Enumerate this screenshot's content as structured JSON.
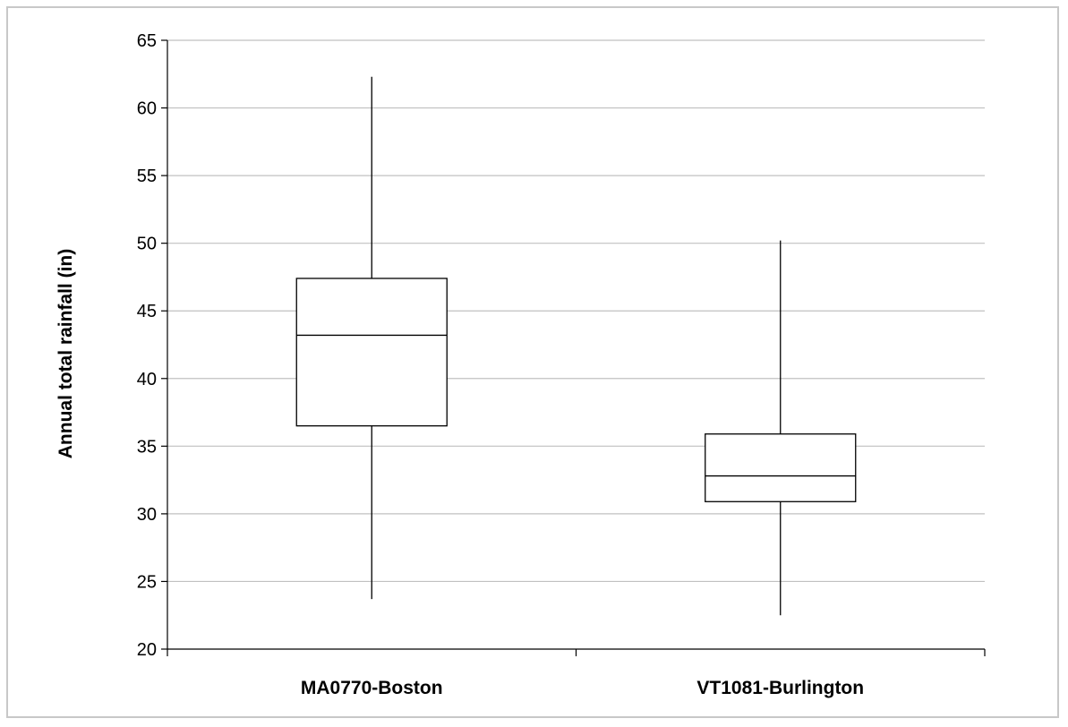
{
  "chart_data": {
    "type": "box",
    "title": "",
    "xlabel": "",
    "ylabel": "Annual total rainfall (in)",
    "ylim": [
      20,
      65
    ],
    "yticks": [
      20,
      25,
      30,
      35,
      40,
      45,
      50,
      55,
      60,
      65
    ],
    "grid": true,
    "legend": "none",
    "categories": [
      "MA0770-Boston",
      "VT1081-Burlington"
    ],
    "boxes": [
      {
        "category": "MA0770-Boston",
        "min": 23.7,
        "q1": 36.5,
        "median": 43.2,
        "q3": 47.4,
        "max": 62.3
      },
      {
        "category": "VT1081-Burlington",
        "min": 22.5,
        "q1": 30.9,
        "median": 32.8,
        "q3": 35.9,
        "max": 50.2
      }
    ],
    "colors": {
      "gridline": "#c0c0c0",
      "box_stroke": "#000000",
      "box_fill": "#ffffff"
    }
  }
}
